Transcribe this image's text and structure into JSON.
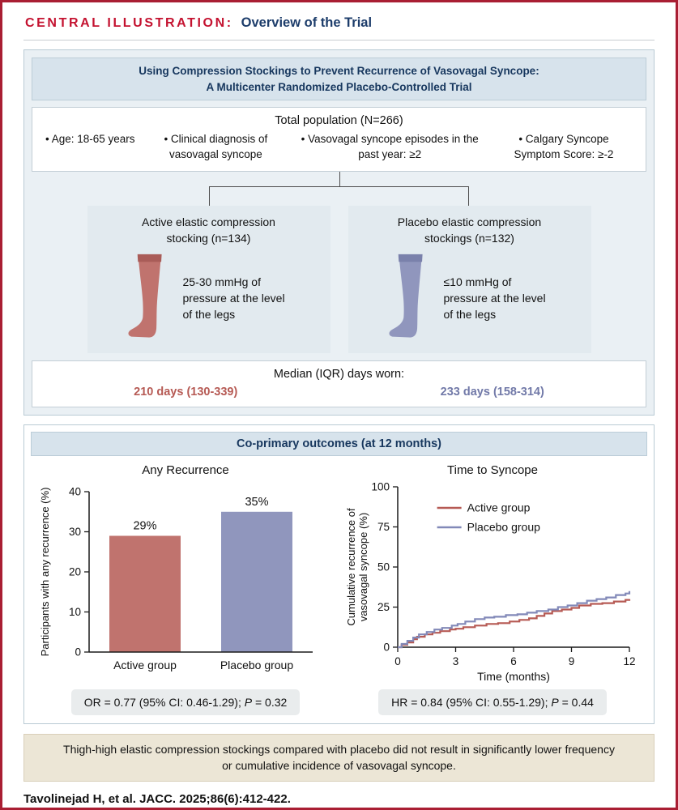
{
  "header": {
    "kicker": "CENTRAL ILLUSTRATION:",
    "title": "Overview of the Trial"
  },
  "trial": {
    "title_lines": [
      "Using Compression Stockings to Prevent Recurrence of Vasovagal Syncope:",
      "A Multicenter Randomized Placebo-Controlled Trial"
    ],
    "population": {
      "heading": "Total population (N=266)",
      "bullets": [
        "• Age: 18-65 years",
        "• Clinical diagnosis of vasovagal syncope",
        "• Vasovagal syncope episodes in the past year: ≥2",
        "• Calgary Syncope Symptom Score: ≥-2"
      ]
    },
    "arms": [
      {
        "title": "Active elastic compression stocking (n=134)",
        "description": "25-30 mmHg of pressure at the level of the legs",
        "color": "#c0736e",
        "band_color": "#a95c58"
      },
      {
        "title": "Placebo elastic compression stockings (n=132)",
        "description": "≤10 mmHg of pressure at the level of the legs",
        "color": "#9096bd",
        "band_color": "#7a81ab"
      }
    ],
    "adherence": {
      "heading": "Median (IQR) days worn:",
      "active_value": "210 days (130-339)",
      "placebo_value": "233 days (158-314)",
      "active_color": "#b65a54",
      "placebo_color": "#7179a8"
    }
  },
  "outcomes": {
    "heading": "Co-primary outcomes (at 12 months)",
    "or_stat": {
      "prefix": "OR = 0.77 (95% CI: 0.46-1.29); ",
      "p_label": "P",
      "suffix": " = 0.32"
    },
    "hr_stat": {
      "prefix": "HR = 0.84 (95% CI: 0.55-1.29); ",
      "p_label": "P",
      "suffix": " = 0.44"
    }
  },
  "conclusion": "Thigh-high elastic compression stockings compared with placebo did not result in significantly lower frequency or cumulative incidence of vasovagal syncope.",
  "citation": "Tavolinejad H, et al. JACC. 2025;86(6):412-422.",
  "colors": {
    "border_red": "#a91e33",
    "kicker_red": "#c41230",
    "navy": "#1d3d6b",
    "panel_bg": "#eaf0f4",
    "strip_bg": "#d7e3ec",
    "conclusion_bg": "#ece6d6"
  },
  "chart_data": [
    {
      "type": "bar",
      "title": "Any Recurrence",
      "categories": [
        "Active group",
        "Placebo group"
      ],
      "values": [
        29,
        35
      ],
      "bar_labels": [
        "29%",
        "35%"
      ],
      "ylabel": "Participants with any recurrence (%)",
      "xlabel": "",
      "ylim": [
        0,
        40
      ],
      "yticks": [
        0,
        10,
        20,
        30,
        40
      ],
      "colors": [
        "#c0736e",
        "#9096bd"
      ],
      "grid": false,
      "legend_position": "none"
    },
    {
      "type": "line",
      "subtype": "step",
      "title": "Time to Syncope",
      "xlabel": "Time (months)",
      "ylabel": "Cumulative recurrence of vasovagal syncope (%)",
      "ylabel_lines": [
        "Cumulative recurrence of",
        "vasovagal syncope (%)"
      ],
      "xlim": [
        0,
        12
      ],
      "ylim": [
        0,
        100
      ],
      "xticks": [
        0,
        3,
        6,
        9,
        12
      ],
      "yticks": [
        0,
        25,
        50,
        75,
        100
      ],
      "grid": false,
      "legend_position": "top-left-inside",
      "series": [
        {
          "name": "Active group",
          "color": "#b65a54",
          "x": [
            0,
            0.2,
            0.5,
            0.8,
            1.0,
            1.4,
            1.8,
            2.2,
            2.7,
            3.0,
            3.4,
            4.0,
            4.6,
            5.2,
            5.8,
            6.3,
            6.8,
            7.2,
            7.6,
            8.0,
            8.5,
            9.0,
            9.4,
            10.0,
            10.6,
            11.2,
            11.8,
            12
          ],
          "y": [
            0,
            1.5,
            3,
            5,
            6.5,
            8,
            9,
            10,
            11,
            11.5,
            12.5,
            13.5,
            14.5,
            15,
            16,
            17,
            18,
            19.5,
            21,
            22.5,
            23.5,
            24.5,
            26,
            27,
            27.5,
            28.5,
            29.5,
            30
          ]
        },
        {
          "name": "Placebo group",
          "color": "#8289b8",
          "x": [
            0,
            0.2,
            0.5,
            0.8,
            1.1,
            1.5,
            1.9,
            2.3,
            2.8,
            3.1,
            3.5,
            4.0,
            4.5,
            5.0,
            5.6,
            6.2,
            6.7,
            7.2,
            7.8,
            8.3,
            8.8,
            9.3,
            9.8,
            10.3,
            10.8,
            11.3,
            11.8,
            12
          ],
          "y": [
            0,
            2,
            4,
            6,
            8,
            9.5,
            11,
            12,
            13.5,
            14.5,
            16,
            17.5,
            18.5,
            19,
            20,
            20.5,
            21.5,
            22.5,
            23.5,
            25,
            26,
            27.5,
            29,
            30,
            31,
            32.5,
            33.5,
            35
          ]
        }
      ]
    }
  ]
}
